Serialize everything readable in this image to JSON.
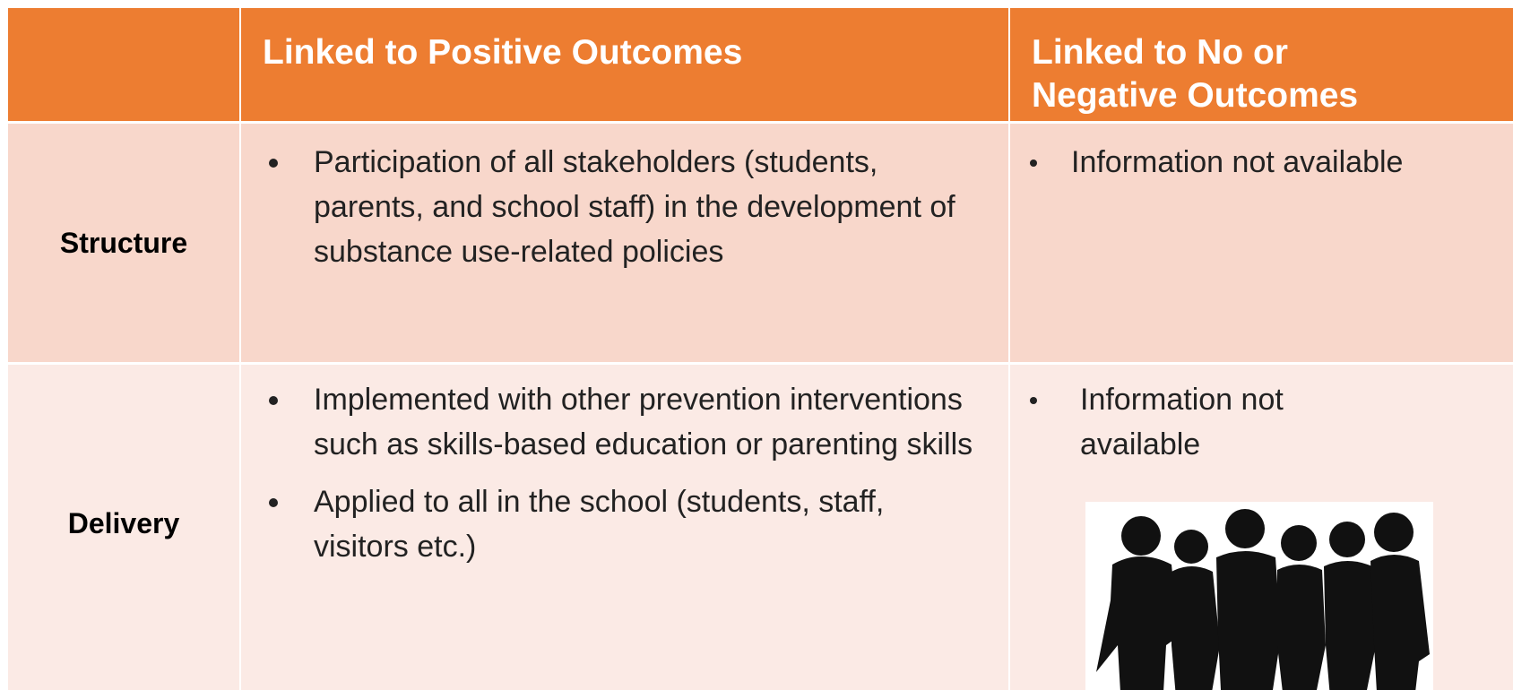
{
  "table": {
    "columns": [
      "Linked to Positive Outcomes",
      "Linked to No or Negative Outcomes"
    ],
    "rows": [
      {
        "label": "Structure",
        "positive": [
          "Participation of all stakeholders (students, parents, and school staff) in the development of substance use-related policies"
        ],
        "negative": [
          "Information not available"
        ]
      },
      {
        "label": "Delivery",
        "positive": [
          "Implemented with other prevention interventions such as skills-based education or parenting skills",
          "Applied to all in the school (students, staff, visitors etc.)"
        ],
        "negative": [
          "Information not available"
        ]
      }
    ]
  }
}
